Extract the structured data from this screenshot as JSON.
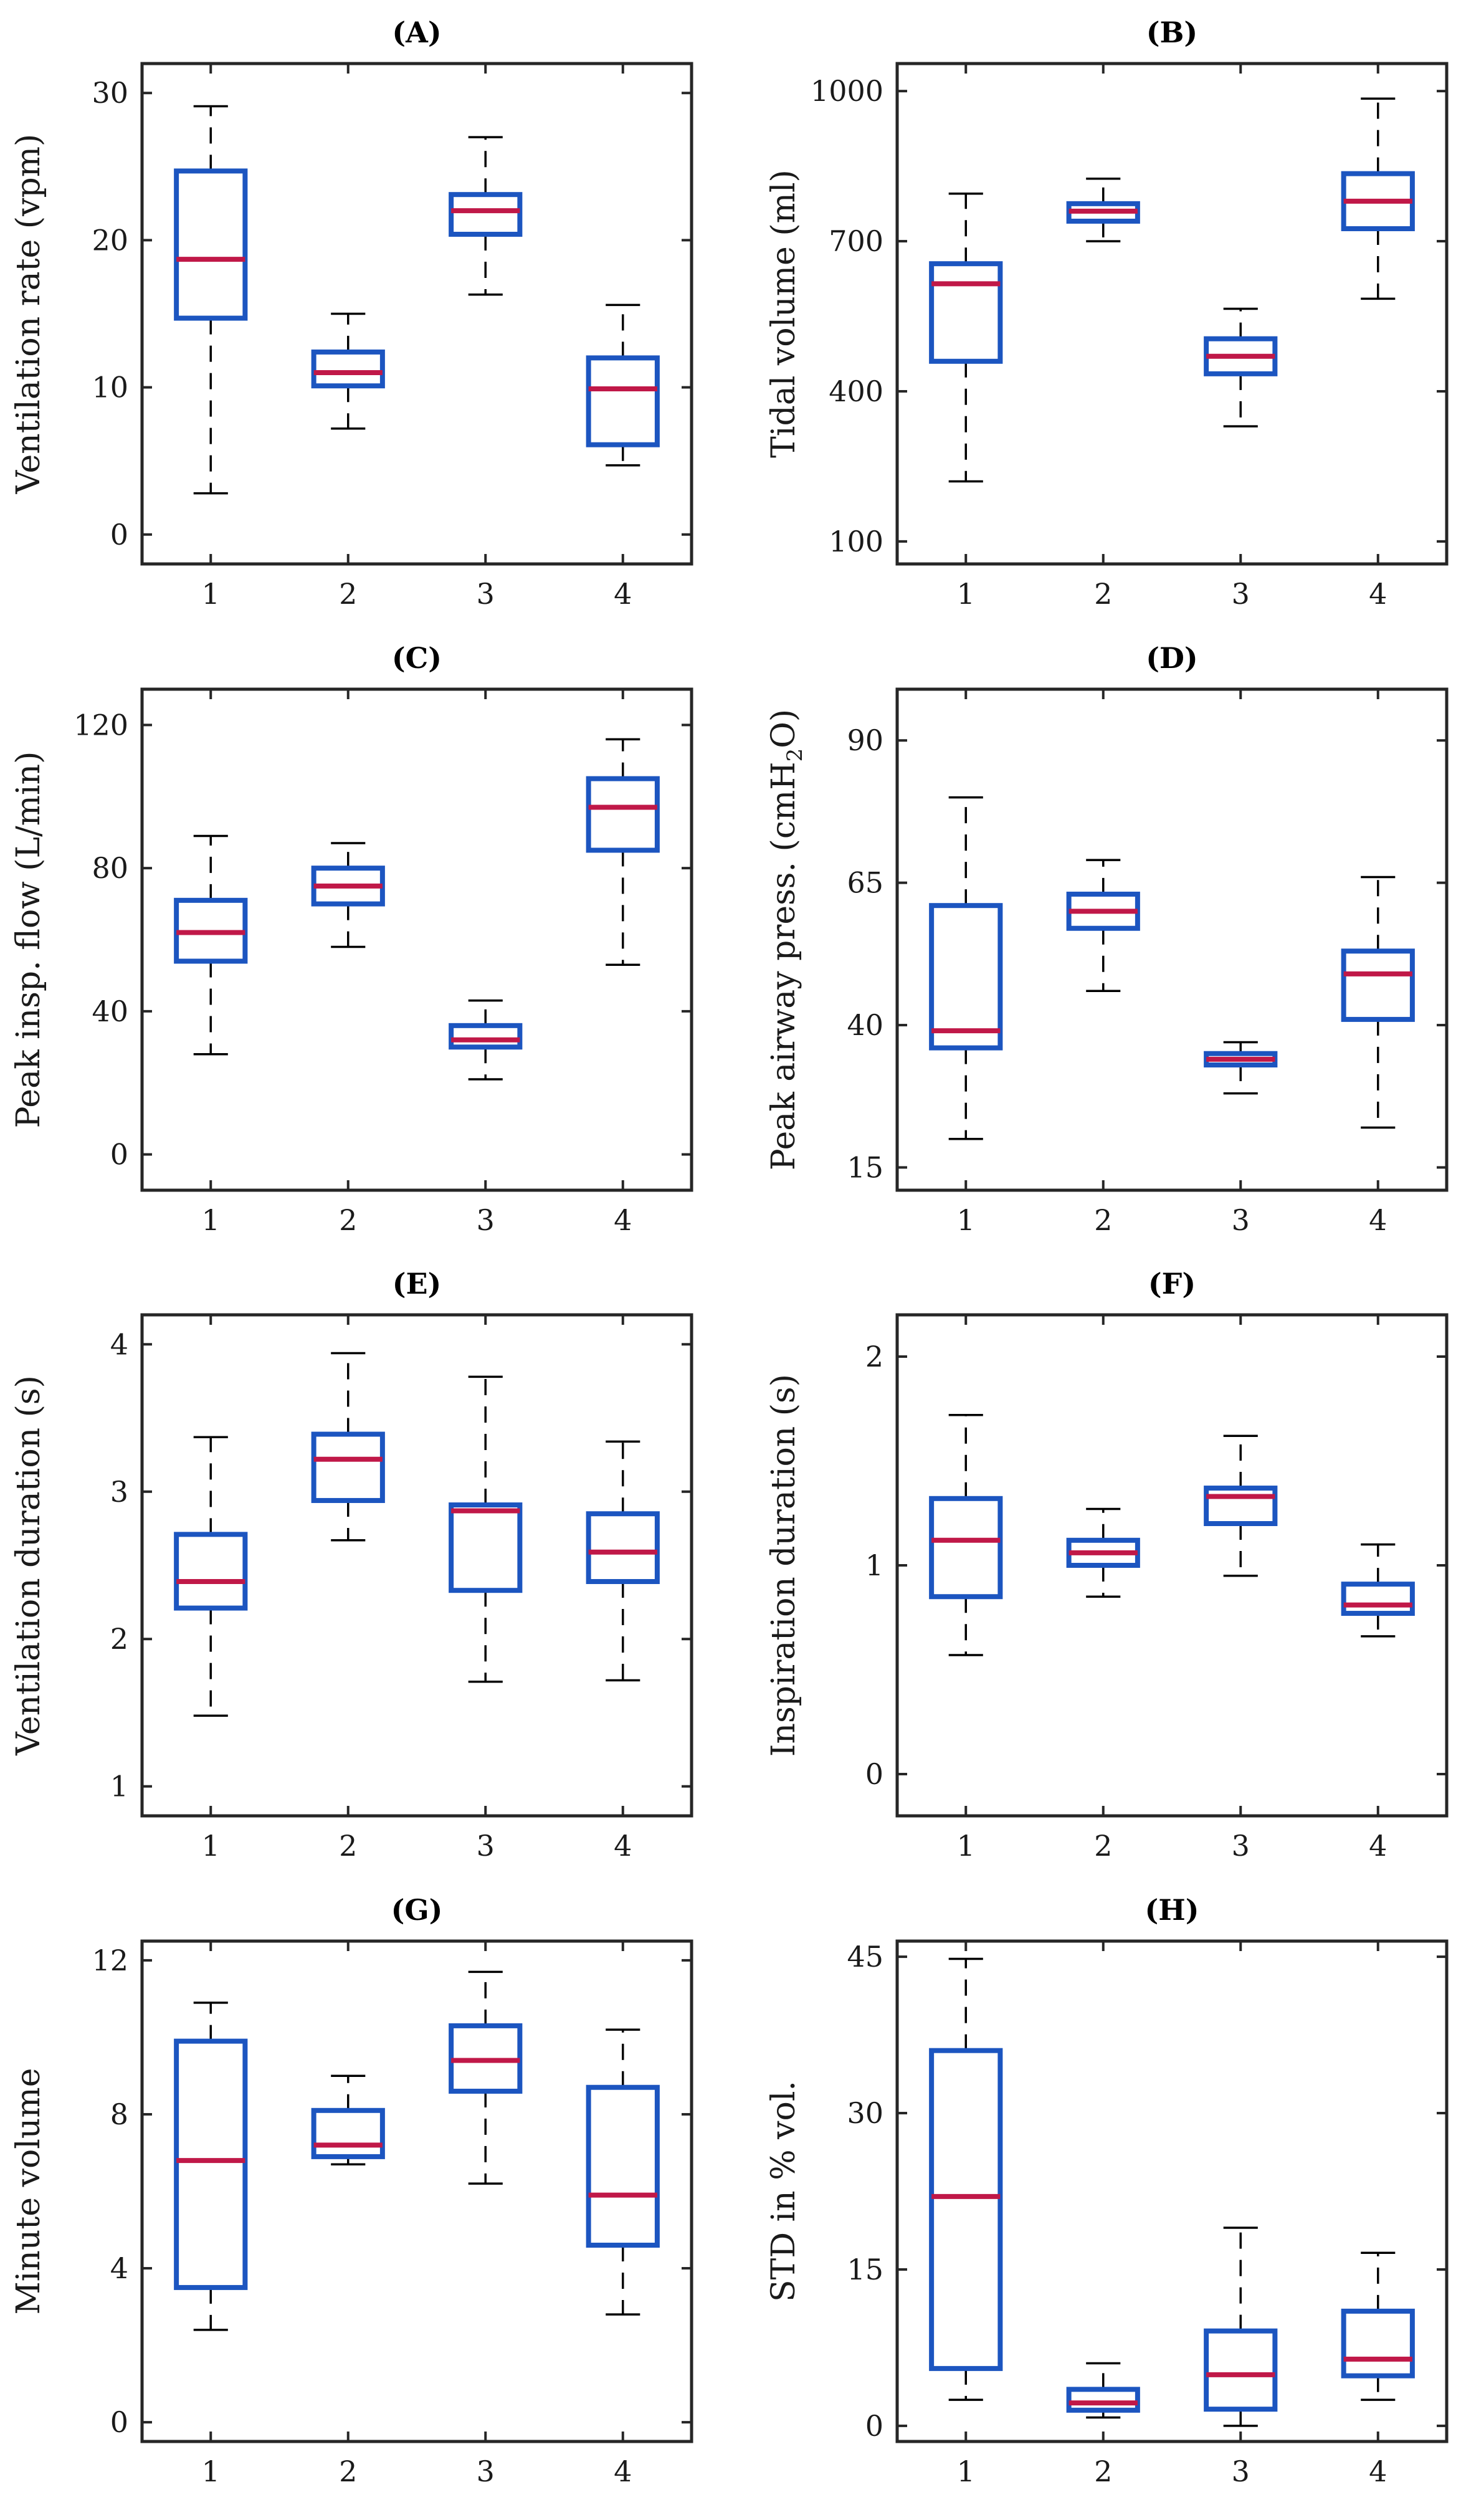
{
  "figure": {
    "colors": {
      "box": "#1c55c0",
      "median": "#c01848",
      "whisker": "#000000"
    }
  },
  "chart_data": [
    {
      "type": "box",
      "title": "(A)",
      "xlabel": "",
      "ylabel": "Ventilation rate (vpm)",
      "categories": [
        "1",
        "2",
        "3",
        "4"
      ],
      "ylim": [
        -2,
        32
      ],
      "yticks": [
        0,
        10,
        20,
        30
      ],
      "ytick_labels": [
        "0",
        "10",
        "20",
        "30"
      ],
      "boxes": [
        {
          "whislo": 2.8,
          "q1": 14.7,
          "med": 18.7,
          "q3": 24.7,
          "whishi": 29.1
        },
        {
          "whislo": 7.2,
          "q1": 10.1,
          "med": 11.0,
          "q3": 12.4,
          "whishi": 15.0
        },
        {
          "whislo": 16.3,
          "q1": 20.4,
          "med": 22.0,
          "q3": 23.1,
          "whishi": 27.0
        },
        {
          "whislo": 4.7,
          "q1": 6.1,
          "med": 9.9,
          "q3": 12.0,
          "whishi": 15.6
        }
      ]
    },
    {
      "type": "box",
      "title": "(B)",
      "xlabel": "",
      "ylabel": "Tidal volume (ml)",
      "categories": [
        "1",
        "2",
        "3",
        "4"
      ],
      "ylim": [
        55,
        1055
      ],
      "yticks": [
        100,
        400,
        700,
        1000
      ],
      "ytick_labels": [
        "100",
        "400",
        "700",
        "1000"
      ],
      "boxes": [
        {
          "whislo": 220,
          "q1": 460,
          "med": 615,
          "q3": 655,
          "whishi": 795
        },
        {
          "whislo": 700,
          "q1": 740,
          "med": 760,
          "q3": 775,
          "whishi": 825
        },
        {
          "whislo": 330,
          "q1": 435,
          "med": 470,
          "q3": 505,
          "whishi": 565
        },
        {
          "whislo": 585,
          "q1": 725,
          "med": 780,
          "q3": 835,
          "whishi": 985
        }
      ]
    },
    {
      "type": "box",
      "title": "(C)",
      "xlabel": "",
      "ylabel": "Peak insp. flow (L/min)",
      "categories": [
        "1",
        "2",
        "3",
        "4"
      ],
      "ylim": [
        -10,
        130
      ],
      "yticks": [
        0,
        40,
        80,
        120
      ],
      "ytick_labels": [
        "0",
        "40",
        "80",
        "120"
      ],
      "boxes": [
        {
          "whislo": 28,
          "q1": 54,
          "med": 62,
          "q3": 71,
          "whishi": 89
        },
        {
          "whislo": 58,
          "q1": 70,
          "med": 75,
          "q3": 80,
          "whishi": 87
        },
        {
          "whislo": 21,
          "q1": 30,
          "med": 32,
          "q3": 36,
          "whishi": 43
        },
        {
          "whislo": 53,
          "q1": 85,
          "med": 97,
          "q3": 105,
          "whishi": 116
        }
      ]
    },
    {
      "type": "box",
      "title": "(D)",
      "xlabel": "",
      "ylabel": "Peak airway press. (cmH2O)",
      "ylabel_parts": {
        "main": "Peak airway press. (cmH",
        "sub": "2",
        "tail": "O)"
      },
      "categories": [
        "1",
        "2",
        "3",
        "4"
      ],
      "ylim": [
        11,
        99
      ],
      "yticks": [
        15,
        40,
        65,
        90
      ],
      "ytick_labels": [
        "15",
        "40",
        "65",
        "90"
      ],
      "boxes": [
        {
          "whislo": 20,
          "q1": 36,
          "med": 39,
          "q3": 61,
          "whishi": 80
        },
        {
          "whislo": 46,
          "q1": 57,
          "med": 60,
          "q3": 63,
          "whishi": 69
        },
        {
          "whislo": 28,
          "q1": 33,
          "med": 34,
          "q3": 35,
          "whishi": 37
        },
        {
          "whislo": 22,
          "q1": 41,
          "med": 49,
          "q3": 53,
          "whishi": 66
        }
      ]
    },
    {
      "type": "box",
      "title": "(E)",
      "xlabel": "",
      "ylabel": "Ventilation duration (s)",
      "categories": [
        "1",
        "2",
        "3",
        "4"
      ],
      "ylim": [
        0.8,
        4.2
      ],
      "yticks": [
        1,
        2,
        3,
        4
      ],
      "ytick_labels": [
        "1",
        "2",
        "3",
        "4"
      ],
      "boxes": [
        {
          "whislo": 1.48,
          "q1": 2.21,
          "med": 2.39,
          "q3": 2.71,
          "whishi": 3.37
        },
        {
          "whislo": 2.67,
          "q1": 2.94,
          "med": 3.22,
          "q3": 3.39,
          "whishi": 3.94
        },
        {
          "whislo": 1.71,
          "q1": 2.33,
          "med": 2.87,
          "q3": 2.91,
          "whishi": 3.78
        },
        {
          "whislo": 1.72,
          "q1": 2.39,
          "med": 2.59,
          "q3": 2.85,
          "whishi": 3.34
        }
      ]
    },
    {
      "type": "box",
      "title": "(F)",
      "xlabel": "",
      "ylabel": "Inspiration duration (s)",
      "categories": [
        "1",
        "2",
        "3",
        "4"
      ],
      "ylim": [
        -0.2,
        2.2
      ],
      "yticks": [
        0,
        1,
        2
      ],
      "ytick_labels": [
        "0",
        "1",
        "2"
      ],
      "boxes": [
        {
          "whislo": 0.57,
          "q1": 0.85,
          "med": 1.12,
          "q3": 1.32,
          "whishi": 1.72
        },
        {
          "whislo": 0.85,
          "q1": 1.0,
          "med": 1.06,
          "q3": 1.12,
          "whishi": 1.27
        },
        {
          "whislo": 0.95,
          "q1": 1.2,
          "med": 1.33,
          "q3": 1.37,
          "whishi": 1.62
        },
        {
          "whislo": 0.66,
          "q1": 0.77,
          "med": 0.81,
          "q3": 0.91,
          "whishi": 1.1
        }
      ]
    },
    {
      "type": "box",
      "title": "(G)",
      "xlabel": "",
      "ylabel": "Minute volume",
      "categories": [
        "1",
        "2",
        "3",
        "4"
      ],
      "ylim": [
        -0.5,
        12.5
      ],
      "yticks": [
        0,
        4,
        8,
        12
      ],
      "ytick_labels": [
        "0",
        "4",
        "8",
        "12"
      ],
      "boxes": [
        {
          "whislo": 2.4,
          "q1": 3.5,
          "med": 6.8,
          "q3": 9.9,
          "whishi": 10.9
        },
        {
          "whislo": 6.7,
          "q1": 6.9,
          "med": 7.2,
          "q3": 8.1,
          "whishi": 9.0
        },
        {
          "whislo": 6.2,
          "q1": 8.6,
          "med": 9.4,
          "q3": 10.3,
          "whishi": 11.7
        },
        {
          "whislo": 2.8,
          "q1": 4.6,
          "med": 5.9,
          "q3": 8.7,
          "whishi": 10.2
        }
      ]
    },
    {
      "type": "box",
      "title": "(H)",
      "xlabel": "",
      "ylabel": "STD in % vol.",
      "categories": [
        "1",
        "2",
        "3",
        "4"
      ],
      "ylim": [
        -1.5,
        46.5
      ],
      "yticks": [
        0,
        15,
        30,
        45
      ],
      "ytick_labels": [
        "0",
        "15",
        "30",
        "45"
      ],
      "boxes": [
        {
          "whislo": 2.5,
          "q1": 5.5,
          "med": 22.0,
          "q3": 36.0,
          "whishi": 44.8
        },
        {
          "whislo": 0.8,
          "q1": 1.5,
          "med": 2.2,
          "q3": 3.5,
          "whishi": 6.0
        },
        {
          "whislo": 0.0,
          "q1": 1.6,
          "med": 4.9,
          "q3": 9.1,
          "whishi": 19.0
        },
        {
          "whislo": 2.5,
          "q1": 4.8,
          "med": 6.4,
          "q3": 11.0,
          "whishi": 16.6
        }
      ]
    }
  ]
}
